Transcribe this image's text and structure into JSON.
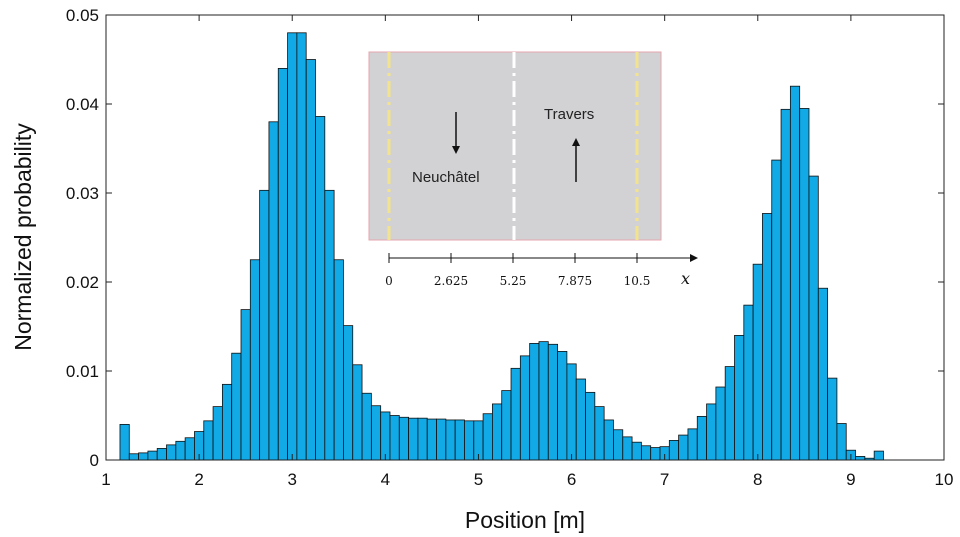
{
  "chart_data": {
    "type": "bar",
    "xlabel": "Position [m]",
    "ylabel": "Normalized probability",
    "xlim": [
      1,
      10
    ],
    "ylim": [
      0,
      0.05
    ],
    "x_ticks": [
      "1",
      "2",
      "3",
      "4",
      "5",
      "6",
      "7",
      "8",
      "9",
      "10"
    ],
    "y_ticks": [
      "0",
      "0.01",
      "0.02",
      "0.03",
      "0.04",
      "0.05"
    ],
    "grid": false,
    "bar_color": "#11a9e6",
    "bin_width": 0.1,
    "x": [
      1.2,
      1.3,
      1.4,
      1.5,
      1.6,
      1.7,
      1.8,
      1.9,
      2.0,
      2.1,
      2.2,
      2.3,
      2.4,
      2.5,
      2.6,
      2.7,
      2.8,
      2.9,
      3.0,
      3.1,
      3.2,
      3.3,
      3.4,
      3.5,
      3.6,
      3.7,
      3.8,
      3.9,
      4.0,
      4.1,
      4.2,
      4.3,
      4.4,
      4.5,
      4.6,
      4.7,
      4.8,
      4.9,
      5.0,
      5.1,
      5.2,
      5.3,
      5.4,
      5.5,
      5.6,
      5.7,
      5.8,
      5.9,
      6.0,
      6.1,
      6.2,
      6.3,
      6.4,
      6.5,
      6.6,
      6.7,
      6.8,
      6.9,
      7.0,
      7.1,
      7.2,
      7.3,
      7.4,
      7.5,
      7.6,
      7.7,
      7.8,
      7.9,
      8.0,
      8.1,
      8.2,
      8.3,
      8.4,
      8.5,
      8.6,
      8.7,
      8.8,
      8.9,
      9.0,
      9.1,
      9.2,
      9.3
    ],
    "values": [
      0.004,
      0.0007,
      0.0008,
      0.001,
      0.0013,
      0.0017,
      0.0021,
      0.0025,
      0.0032,
      0.0044,
      0.006,
      0.0085,
      0.012,
      0.0169,
      0.0225,
      0.0303,
      0.038,
      0.044,
      0.048,
      0.048,
      0.045,
      0.0386,
      0.0303,
      0.0225,
      0.0151,
      0.0107,
      0.0075,
      0.0061,
      0.0054,
      0.005,
      0.0048,
      0.0047,
      0.0047,
      0.0046,
      0.0046,
      0.0045,
      0.0045,
      0.0044,
      0.0044,
      0.0052,
      0.0063,
      0.0078,
      0.0103,
      0.0117,
      0.0131,
      0.0133,
      0.013,
      0.0122,
      0.0108,
      0.0091,
      0.0076,
      0.006,
      0.0045,
      0.0034,
      0.0026,
      0.002,
      0.0016,
      0.0014,
      0.0015,
      0.0022,
      0.0028,
      0.0035,
      0.0049,
      0.0063,
      0.0082,
      0.0105,
      0.014,
      0.0174,
      0.022,
      0.0277,
      0.0337,
      0.0394,
      0.042,
      0.0395,
      0.0319,
      0.0193,
      0.0092,
      0.0041,
      0.0011,
      0.0004,
      0.0002,
      0.001
    ],
    "inset": {
      "left_label": "Neuchâtel",
      "right_label": "Travers",
      "axis_var": "x",
      "ticks": [
        "0",
        "2.625",
        "5.25",
        "7.875",
        "10.5"
      ],
      "road_color": "#d2d2d4",
      "edge_line_color": "#f2e38c",
      "center_line_color": "#ffffff",
      "border_color": "#e4a6ad"
    }
  }
}
